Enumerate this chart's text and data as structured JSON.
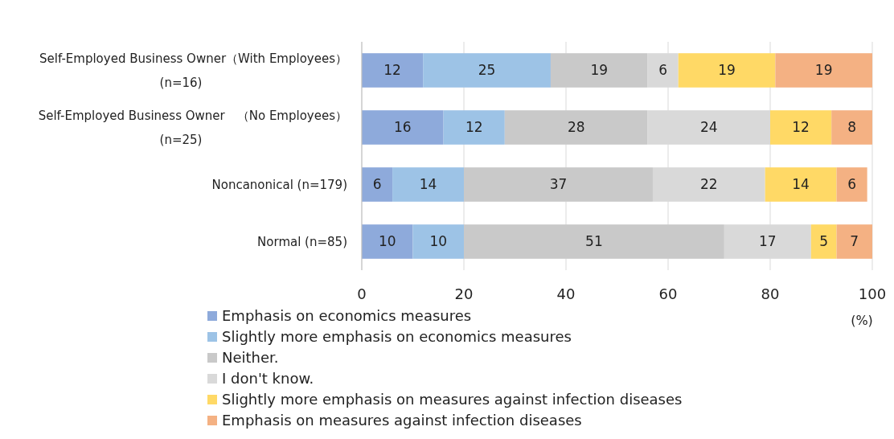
{
  "chart_data": {
    "type": "bar",
    "orientation": "horizontal",
    "stacked": true,
    "data_labels": true,
    "grid": "x",
    "legend": "bottom",
    "xlabel": "(%)",
    "categories": [
      "Self-Employed Business Owner（With Employees）\n(n=16)",
      "Self-Employed Business Owner　（No Employees）\n(n=25)",
      "Noncanonical (n=179)",
      "Normal (n=85)"
    ],
    "xlim": [
      0,
      100
    ],
    "xticks": [
      0,
      20,
      40,
      60,
      80,
      100
    ],
    "series": [
      {
        "name": "Emphasis on economics measures",
        "color": "#8eaadb",
        "values": [
          12,
          16,
          6,
          10
        ]
      },
      {
        "name": "Slightly more emphasis on economics measures",
        "color": "#9dc3e6",
        "values": [
          25,
          12,
          14,
          10
        ]
      },
      {
        "name": "Neither.",
        "color": "#c9c9c9",
        "values": [
          19,
          28,
          37,
          51
        ]
      },
      {
        "name": "I don't know.",
        "color": "#d9d9d9",
        "values": [
          6,
          24,
          22,
          17
        ]
      },
      {
        "name": "Slightly more emphasis on measures against infection diseases",
        "color": "#ffd966",
        "values": [
          19,
          12,
          14,
          5
        ]
      },
      {
        "name": "Emphasis on measures against infection diseases",
        "color": "#f4b183",
        "values": [
          19,
          8,
          6,
          7
        ]
      }
    ]
  }
}
